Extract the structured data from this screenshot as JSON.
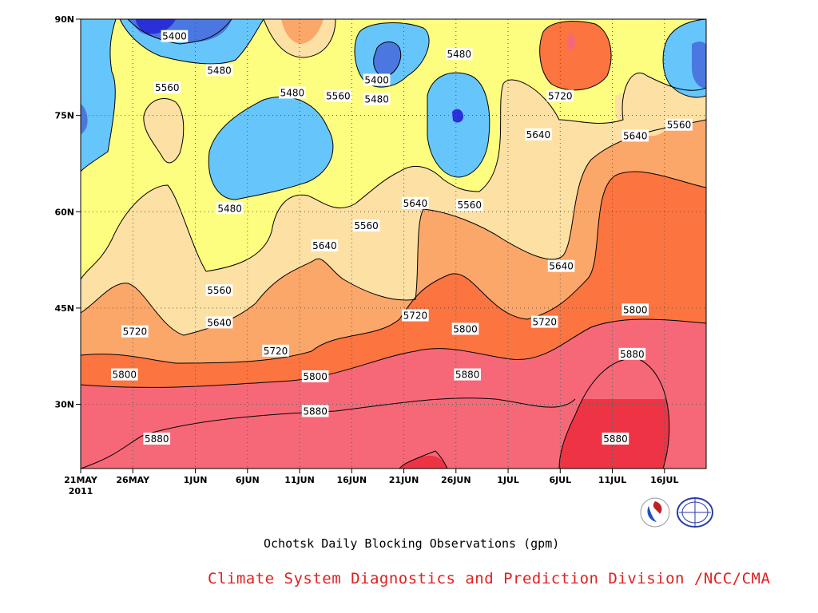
{
  "chart_data": {
    "type": "contour",
    "title": "Ochotsk Daily Blocking Observations (gpm)",
    "credit": "Climate System Diagnostics and Prediction Division /NCC/CMA",
    "x_ticks": [
      {
        "label": "21MAY",
        "sub": "2011",
        "day": 0
      },
      {
        "label": "26MAY",
        "day": 5
      },
      {
        "label": "1JUN",
        "day": 11
      },
      {
        "label": "6JUN",
        "day": 16
      },
      {
        "label": "11JUN",
        "day": 21
      },
      {
        "label": "16JUN",
        "day": 26
      },
      {
        "label": "21JUN",
        "day": 31
      },
      {
        "label": "26JUN",
        "day": 36
      },
      {
        "label": "1JUL",
        "day": 41
      },
      {
        "label": "6JUL",
        "day": 46
      },
      {
        "label": "11JUL",
        "day": 51
      },
      {
        "label": "16JUL",
        "day": 56
      }
    ],
    "x_range_days": [
      0,
      60
    ],
    "y_ticks": [
      {
        "label": "90N",
        "lat": 90
      },
      {
        "label": "75N",
        "lat": 75
      },
      {
        "label": "60N",
        "lat": 60
      },
      {
        "label": "45N",
        "lat": 45
      },
      {
        "label": "30N",
        "lat": 30
      }
    ],
    "y_range_lat": [
      20,
      90
    ],
    "grid": "dotted",
    "contour_levels": [
      5400,
      5480,
      5560,
      5640,
      5720,
      5800,
      5880
    ],
    "fill_colors": {
      "lt5320": "#2a30d8",
      "5320_5400": "#4a78e0",
      "5400_5480": "#66c6fc",
      "5480_5560": "#fdfd80",
      "5560_5640": "#fde0a4",
      "5640_5720": "#fca76a",
      "5720_5800": "#fc7440",
      "5800_5880": "#f66878",
      "gt5880": "#ee3444"
    },
    "contour_labels": [
      {
        "text": "5400",
        "day": 9,
        "lat": 87.3
      },
      {
        "text": "5480",
        "day": 13.3,
        "lat": 82
      },
      {
        "text": "5560",
        "day": 8.3,
        "lat": 79.3
      },
      {
        "text": "5480",
        "day": 20.3,
        "lat": 78.5
      },
      {
        "text": "5560",
        "day": 24.7,
        "lat": 78
      },
      {
        "text": "5400",
        "day": 28.4,
        "lat": 80.5
      },
      {
        "text": "5480",
        "day": 28.4,
        "lat": 77.5
      },
      {
        "text": "5480",
        "day": 36.3,
        "lat": 84.5
      },
      {
        "text": "5720",
        "day": 46,
        "lat": 78
      },
      {
        "text": "5640",
        "day": 43.9,
        "lat": 72
      },
      {
        "text": "5640",
        "day": 53.2,
        "lat": 71.8
      },
      {
        "text": "5560",
        "day": 57.4,
        "lat": 73.5
      },
      {
        "text": "5480",
        "day": 14.3,
        "lat": 60.5
      },
      {
        "text": "5640",
        "day": 32.1,
        "lat": 61.3
      },
      {
        "text": "5560",
        "day": 37.3,
        "lat": 61
      },
      {
        "text": "5560",
        "day": 27.4,
        "lat": 57.8
      },
      {
        "text": "5640",
        "day": 23.4,
        "lat": 54.7
      },
      {
        "text": "5640",
        "day": 46.1,
        "lat": 51.5
      },
      {
        "text": "5560",
        "day": 13.3,
        "lat": 47.7
      },
      {
        "text": "5640",
        "day": 13.3,
        "lat": 42.7
      },
      {
        "text": "5720",
        "day": 32.1,
        "lat": 43.8
      },
      {
        "text": "5800",
        "day": 36.9,
        "lat": 41.7
      },
      {
        "text": "5720",
        "day": 44.5,
        "lat": 42.8
      },
      {
        "text": "5800",
        "day": 53.2,
        "lat": 44.7
      },
      {
        "text": "5720",
        "day": 5.2,
        "lat": 41.3
      },
      {
        "text": "5720",
        "day": 18.7,
        "lat": 38.3
      },
      {
        "text": "5880",
        "day": 52.9,
        "lat": 37.8
      },
      {
        "text": "5800",
        "day": 4.2,
        "lat": 34.6
      },
      {
        "text": "5800",
        "day": 22.5,
        "lat": 34.3
      },
      {
        "text": "5880",
        "day": 37.1,
        "lat": 34.6
      },
      {
        "text": "5880",
        "day": 22.5,
        "lat": 28.9
      },
      {
        "text": "5880",
        "day": 7.3,
        "lat": 24.6
      },
      {
        "text": "5880",
        "day": 51.3,
        "lat": 24.6
      }
    ]
  }
}
